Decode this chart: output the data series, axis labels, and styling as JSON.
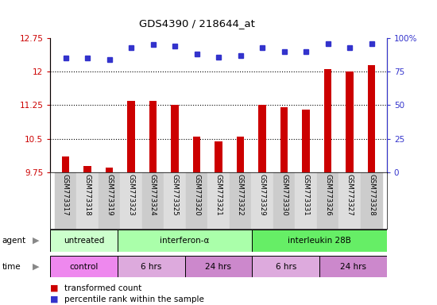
{
  "title": "GDS4390 / 218644_at",
  "samples": [
    "GSM773317",
    "GSM773318",
    "GSM773319",
    "GSM773323",
    "GSM773324",
    "GSM773325",
    "GSM773320",
    "GSM773321",
    "GSM773322",
    "GSM773329",
    "GSM773330",
    "GSM773331",
    "GSM773326",
    "GSM773327",
    "GSM773328"
  ],
  "transformed_count": [
    10.1,
    9.9,
    9.85,
    11.35,
    11.35,
    11.25,
    10.55,
    10.45,
    10.55,
    11.25,
    11.2,
    11.15,
    12.05,
    12.0,
    12.15
  ],
  "percentile_rank": [
    85,
    85,
    84,
    93,
    95,
    94,
    88,
    86,
    87,
    93,
    90,
    90,
    96,
    93,
    96
  ],
  "ylim_left": [
    9.75,
    12.75
  ],
  "ylim_right": [
    0,
    100
  ],
  "yticks_left": [
    9.75,
    10.5,
    11.25,
    12.0,
    12.75
  ],
  "yticks_right": [
    0,
    25,
    50,
    75,
    100
  ],
  "ytick_labels_left": [
    "9.75",
    "10.5",
    "11.25",
    "12",
    "12.75"
  ],
  "ytick_labels_right": [
    "0",
    "25",
    "50",
    "75",
    "100%"
  ],
  "bar_color": "#cc0000",
  "dot_color": "#3333cc",
  "agent_groups": [
    {
      "label": "untreated",
      "start": 0,
      "end": 3,
      "color": "#ccffcc"
    },
    {
      "label": "interferon-α",
      "start": 3,
      "end": 9,
      "color": "#aaffaa"
    },
    {
      "label": "interleukin 28B",
      "start": 9,
      "end": 15,
      "color": "#66ee66"
    }
  ],
  "time_groups": [
    {
      "label": "control",
      "start": 0,
      "end": 3,
      "color": "#ee88ee"
    },
    {
      "label": "6 hrs",
      "start": 3,
      "end": 6,
      "color": "#ddaadd"
    },
    {
      "label": "24 hrs",
      "start": 6,
      "end": 9,
      "color": "#cc88cc"
    },
    {
      "label": "6 hrs",
      "start": 9,
      "end": 12,
      "color": "#ddaadd"
    },
    {
      "label": "24 hrs",
      "start": 12,
      "end": 15,
      "color": "#cc88cc"
    }
  ]
}
